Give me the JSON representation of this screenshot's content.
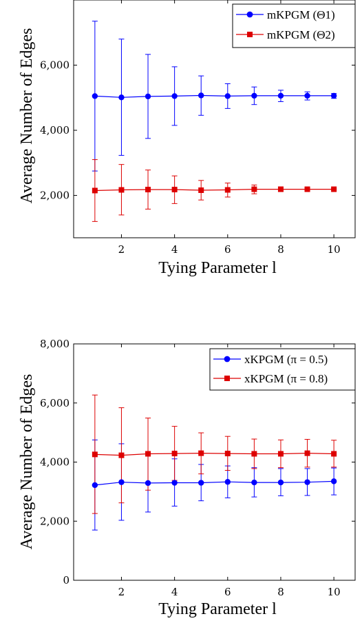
{
  "chart_data": [
    {
      "type": "line",
      "xlabel": "Tying Parameter l",
      "ylabel": "Average Number of Edges",
      "xlim": [
        0.2,
        10.8
      ],
      "ylim": [
        700,
        8000
      ],
      "xticks": [
        "2",
        "4",
        "6",
        "8",
        "10"
      ],
      "yticks": [
        "2,000",
        "4,000",
        "6,000"
      ],
      "legend_position": "top-right",
      "grid": false,
      "x": [
        1,
        2,
        3,
        4,
        5,
        6,
        7,
        8,
        9,
        10
      ],
      "series": [
        {
          "name": "mKPGM (Θ1)",
          "color": "#0000ff",
          "marker": "circle",
          "values": [
            5050,
            5010,
            5040,
            5050,
            5070,
            5050,
            5060,
            5060,
            5060,
            5060
          ],
          "err_low": [
            2750,
            3230,
            3750,
            4150,
            4460,
            4670,
            4790,
            4880,
            4930,
            4980
          ],
          "err_high": [
            7350,
            6800,
            6330,
            5950,
            5670,
            5430,
            5330,
            5230,
            5180,
            5130
          ]
        },
        {
          "name": "mKPGM (Θ2)",
          "color": "#dd0000",
          "marker": "square",
          "values": [
            2150,
            2170,
            2180,
            2180,
            2160,
            2170,
            2190,
            2190,
            2190,
            2190
          ],
          "err_low": [
            1200,
            1400,
            1580,
            1750,
            1860,
            1950,
            2050,
            2120,
            2150,
            2170
          ],
          "err_high": [
            3100,
            2950,
            2780,
            2600,
            2460,
            2380,
            2320,
            2260,
            2230,
            2210
          ]
        }
      ]
    },
    {
      "type": "line",
      "xlabel": "Tying Parameter l",
      "ylabel": "Average Number of Edges",
      "xlim": [
        0.2,
        10.8
      ],
      "ylim": [
        0,
        8000
      ],
      "xticks": [
        "2",
        "4",
        "6",
        "8",
        "10"
      ],
      "yticks": [
        "0",
        "2,000",
        "4,000",
        "6,000",
        "8,000"
      ],
      "legend_position": "top-right",
      "grid": false,
      "x": [
        1,
        2,
        3,
        4,
        5,
        6,
        7,
        8,
        9,
        10
      ],
      "series": [
        {
          "name": "xKPGM (π = 0.5)",
          "color": "#0000ff",
          "marker": "circle",
          "values": [
            3220,
            3320,
            3290,
            3300,
            3300,
            3330,
            3310,
            3310,
            3320,
            3350
          ],
          "err_low": [
            1700,
            2030,
            2310,
            2510,
            2690,
            2790,
            2820,
            2860,
            2870,
            2890
          ],
          "err_high": [
            4750,
            4620,
            4280,
            4110,
            3920,
            3870,
            3810,
            3780,
            3780,
            3800
          ]
        },
        {
          "name": "xKPGM (π = 0.8)",
          "color": "#dd0000",
          "marker": "square",
          "values": [
            4260,
            4230,
            4280,
            4290,
            4300,
            4290,
            4280,
            4280,
            4300,
            4280
          ],
          "err_low": [
            2260,
            2620,
            3050,
            3380,
            3600,
            3720,
            3780,
            3810,
            3830,
            3830
          ],
          "err_high": [
            6270,
            5840,
            5490,
            5210,
            4990,
            4870,
            4780,
            4750,
            4770,
            4740
          ]
        }
      ]
    }
  ]
}
